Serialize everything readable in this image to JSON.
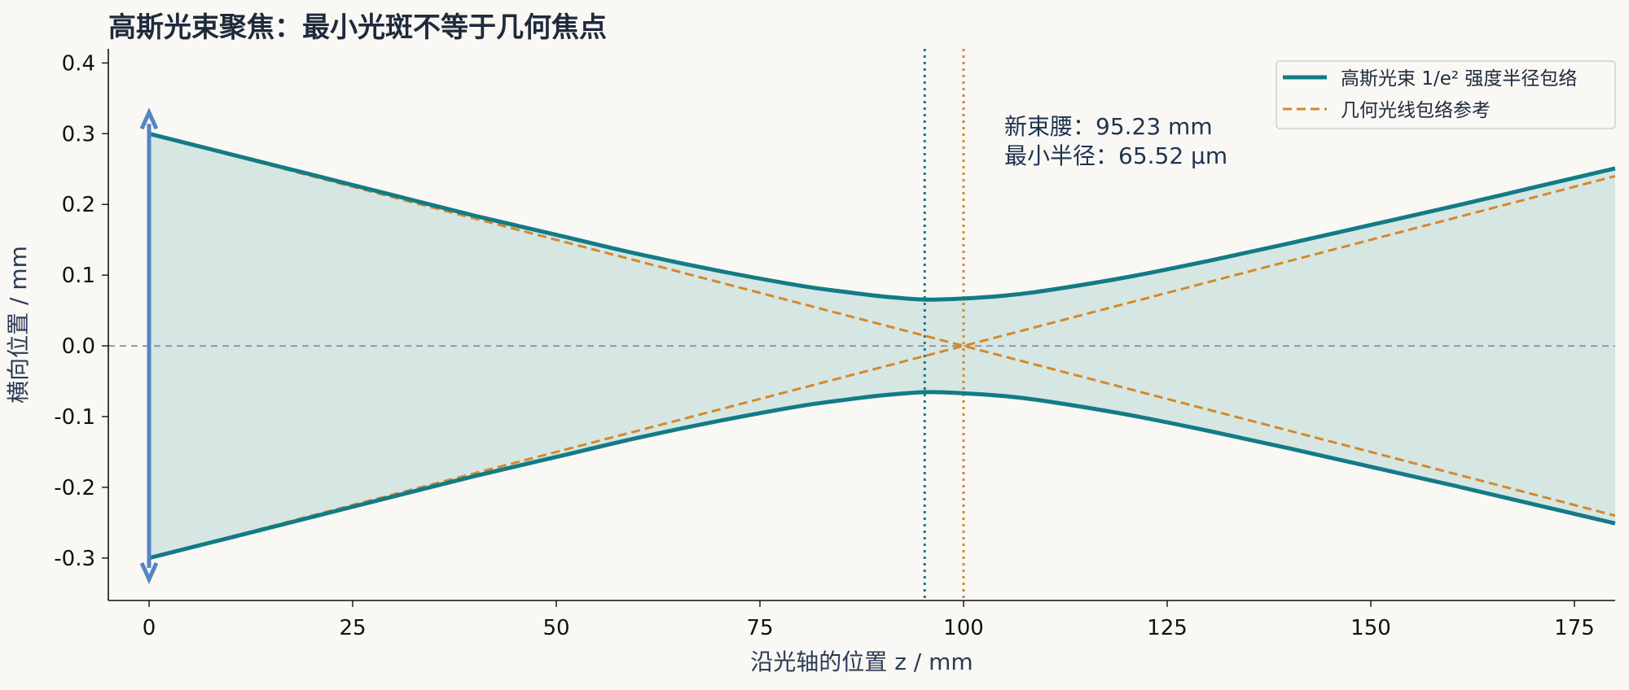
{
  "chart_data": {
    "type": "line",
    "title": "高斯光束聚焦：最小光斑不等于几何焦点",
    "xlabel": "沿光轴的位置 z / mm",
    "ylabel": "横向位置 / mm",
    "xlim": [
      -5,
      180
    ],
    "ylim": [
      -0.36,
      0.42
    ],
    "x_ticks": [
      0,
      25,
      50,
      75,
      100,
      125,
      150,
      175
    ],
    "x_tick_labels": [
      "0",
      "25",
      "50",
      "75",
      "100",
      "125",
      "150",
      "175"
    ],
    "y_ticks": [
      0.4,
      0.3,
      0.2,
      0.1,
      0.0,
      -0.1,
      -0.2,
      -0.3
    ],
    "y_tick_labels": [
      "0.4",
      "0.3",
      "0.2",
      "0.1",
      "0.0",
      "-0.1",
      "-0.2",
      "-0.3"
    ],
    "grid": false,
    "legend_position": "top-right",
    "gaussian": {
      "waist_z_mm": 95.23,
      "waist_radius_mm": 0.06552,
      "z": [
        0,
        10,
        20,
        30,
        40,
        50,
        60,
        70,
        80,
        85,
        90,
        95.23,
        100,
        105,
        110,
        120,
        130,
        140,
        150,
        160,
        170,
        180
      ],
      "radius": [
        0.3,
        0.271,
        0.242,
        0.213,
        0.184,
        0.157,
        0.13,
        0.106,
        0.085,
        0.077,
        0.07,
        0.0655,
        0.067,
        0.071,
        0.078,
        0.097,
        0.12,
        0.145,
        0.171,
        0.197,
        0.224,
        0.251
      ]
    },
    "geometric": {
      "focus_z_mm": 100,
      "z": [
        0,
        100,
        180
      ],
      "radius": [
        0.3,
        0.0,
        0.24
      ]
    },
    "series": [
      {
        "name": "高斯光束 1/e² 强度半径包络",
        "color": "#137b86",
        "style": "solid"
      },
      {
        "name": "几何光线包络参考",
        "color": "#d4892b",
        "style": "dashed"
      }
    ],
    "annotations": [
      {
        "text": "新束腰：95.23 mm"
      },
      {
        "text": "最小半径：65.52 μm"
      }
    ],
    "colors": {
      "gaussian": "#137b86",
      "fill": "#d6e6e2",
      "geometric": "#d4892b",
      "waist_line": "#137b86",
      "focus_line": "#d4892b",
      "axis_ref": "#8d9aab",
      "input_arrow": "#5684c4"
    }
  }
}
